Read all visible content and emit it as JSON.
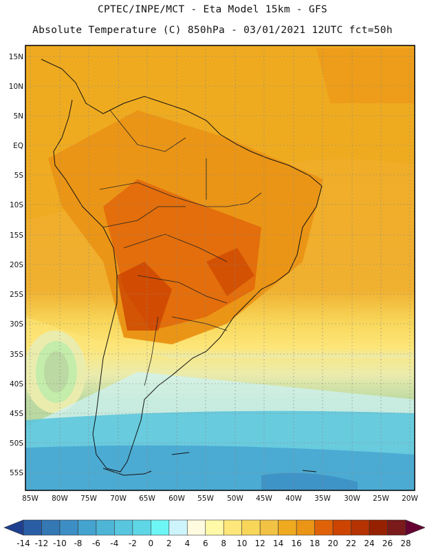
{
  "header": {
    "title_line1": "CPTEC/INPE/MCT -  Eta Model 15km - GFS",
    "title_line2": "Absolute Temperature (C) 850hPa - 03/01/2021 12UTC fct=50h"
  },
  "axes": {
    "lat_labels": [
      "15N",
      "10N",
      "5N",
      "EQ",
      "5S",
      "10S",
      "15S",
      "20S",
      "25S",
      "30S",
      "35S",
      "40S",
      "45S",
      "50S",
      "55S"
    ],
    "lon_labels": [
      "85W",
      "80W",
      "75W",
      "70W",
      "65W",
      "60W",
      "55W",
      "50W",
      "45W",
      "40W",
      "35W",
      "30W",
      "25W",
      "20W"
    ]
  },
  "colorbar": {
    "labels": [
      "-14",
      "-12",
      "-10",
      "-8",
      "-6",
      "-4",
      "-2",
      "0",
      "2",
      "4",
      "6",
      "8",
      "10",
      "12",
      "14",
      "16",
      "18",
      "20",
      "22",
      "24",
      "26",
      "28"
    ],
    "colors": [
      "#1f3f8f",
      "#2a5ea4",
      "#3478b4",
      "#3c8ec4",
      "#45a3cf",
      "#4eb5d6",
      "#57c6de",
      "#5fd6e6",
      "#6ef5f5",
      "#cdf4fa",
      "#fffbe0",
      "#fff9a8",
      "#fde67a",
      "#f8d659",
      "#f2c245",
      "#efaa20",
      "#eb9516",
      "#e06208",
      "#cc4400",
      "#b53300",
      "#962100",
      "#7a1a1a",
      "#660033"
    ]
  }
}
